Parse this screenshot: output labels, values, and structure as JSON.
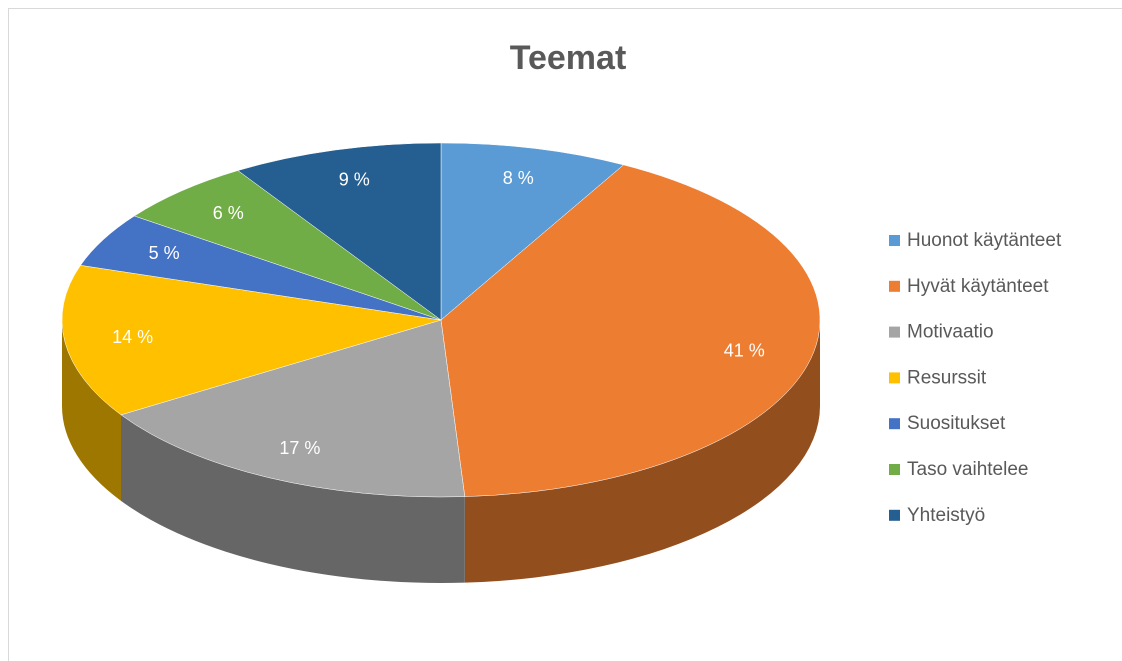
{
  "chart_data": {
    "type": "pie",
    "title": "Teemat",
    "categories": [
      "Huonot käytänteet",
      "Hyvät käytänteet",
      "Motivaatio",
      "Resurssit",
      "Suositukset",
      "Taso vaihtelee",
      "Yhteistyö"
    ],
    "values": [
      8,
      41,
      17,
      14,
      5,
      6,
      9
    ],
    "value_labels": [
      "8 %",
      "41 %",
      "17 %",
      "14 %",
      "5 %",
      "6 %",
      "9 %"
    ],
    "colors": [
      "#5b9bd5",
      "#ed7d31",
      "#a5a5a5",
      "#ffc000",
      "#4472c4",
      "#70ad47",
      "#255e91"
    ],
    "legend": "right"
  }
}
